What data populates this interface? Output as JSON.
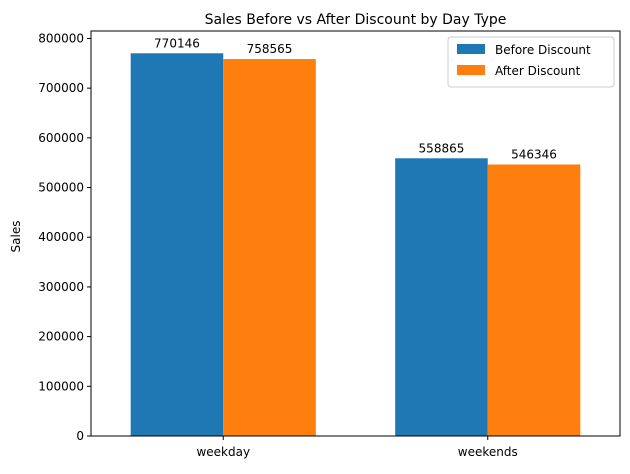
{
  "chart_data": {
    "type": "bar",
    "title": "Sales Before vs After Discount by Day Type",
    "xlabel": "",
    "ylabel": "Sales",
    "categories": [
      "weekday",
      "weekends"
    ],
    "series": [
      {
        "name": "Before Discount",
        "values": [
          770146,
          558865
        ],
        "color": "#1f77b4"
      },
      {
        "name": "After Discount",
        "values": [
          758565,
          546346
        ],
        "color": "#ff7f0e"
      }
    ],
    "ylim": [
      0,
      815000
    ],
    "yticks": [
      0,
      100000,
      200000,
      300000,
      400000,
      500000,
      600000,
      700000,
      800000
    ],
    "grid": false,
    "legend_position": "top-right"
  }
}
